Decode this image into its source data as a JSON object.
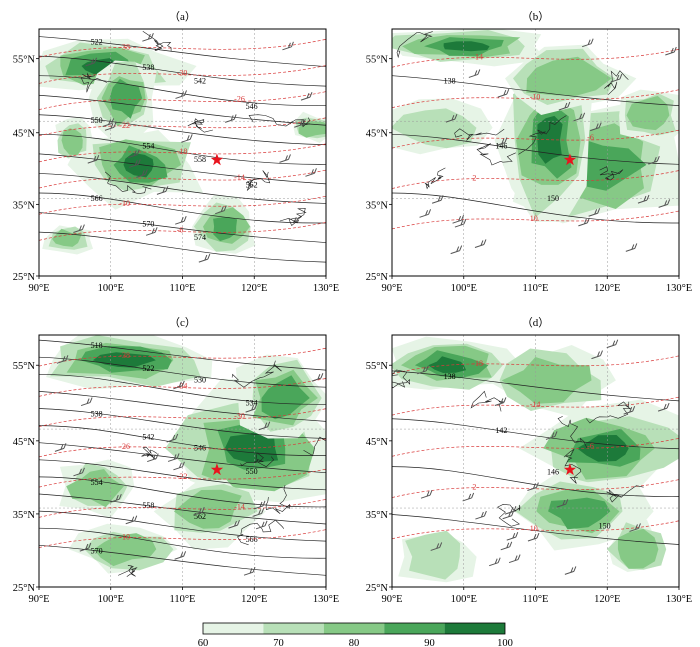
{
  "panels": [
    {
      "label": "（a）",
      "y_ticks": [
        "55°N",
        "45°N",
        "35°N",
        "25°N"
      ],
      "x_ticks": [
        "90°E",
        "100°E",
        "110°E",
        "120°E",
        "130°E"
      ],
      "height_contours": [
        "522",
        "538",
        "542",
        "546",
        "550",
        "554",
        "558",
        "562",
        "566",
        "570",
        "574"
      ],
      "temp_contours": [
        "-38",
        "-30",
        "-26",
        "-22",
        "-18",
        "-14",
        "-10",
        "-6"
      ],
      "marker": "star"
    },
    {
      "label": "（b）",
      "y_ticks": [
        "55°N",
        "45°N",
        "35°N",
        "25°N"
      ],
      "x_ticks": [
        "90°E",
        "100°E",
        "110°E",
        "120°E",
        "130°E"
      ],
      "height_contours": [
        "138",
        "146",
        "150"
      ],
      "temp_contours": [
        "-14",
        "-10",
        "-6",
        "2",
        "10"
      ],
      "marker": "star"
    },
    {
      "label": "（c）",
      "y_ticks": [
        "55°N",
        "45°N",
        "35°N",
        "25°N"
      ],
      "x_ticks": [
        "90°E",
        "100°E",
        "110°E",
        "120°E",
        "130°E"
      ],
      "height_contours": [
        "518",
        "522",
        "530",
        "534",
        "538",
        "542",
        "546",
        "550",
        "554",
        "558",
        "562",
        "566",
        "570"
      ],
      "temp_contours": [
        "-38",
        "-34",
        "-30",
        "-26",
        "-22",
        "-14",
        "-10"
      ],
      "marker": "star"
    },
    {
      "label": "（d）",
      "y_ticks": [
        "55°N",
        "45°N",
        "35°N",
        "25°N"
      ],
      "x_ticks": [
        "90°E",
        "100°E",
        "110°E",
        "120°E",
        "130°E"
      ],
      "height_contours": [
        "138",
        "142",
        "146",
        "150"
      ],
      "temp_contours": [
        "-18",
        "-14",
        "-6",
        "2",
        "10"
      ],
      "marker": "star"
    }
  ],
  "colorbar": {
    "ticks": [
      "60",
      "70",
      "80",
      "90",
      "100"
    ],
    "colors": [
      "#e6f4e6",
      "#b8e0b8",
      "#86c986",
      "#4aa65a",
      "#1d7a3a"
    ]
  },
  "colors": {
    "height_contour": "#222222",
    "temp_contour": "#d93a3a",
    "marker": "#e8141e",
    "border": "#222222",
    "grid": "#999999"
  }
}
